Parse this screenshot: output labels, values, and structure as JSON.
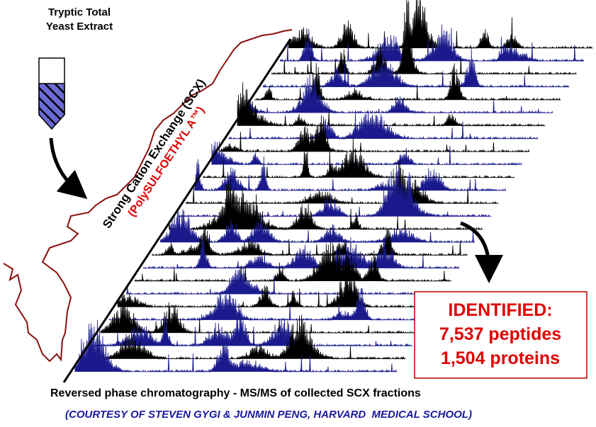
{
  "sample": {
    "line1": "Tryptic Total",
    "line2": "Yeast Extract"
  },
  "scx": {
    "label": "Strong Cation Exchange (SCX)",
    "column": "(PolySULFOETHYL A™)"
  },
  "result": {
    "heading": "IDENTIFIED:",
    "peptides": "7,537 peptides",
    "proteins": "1,504 proteins"
  },
  "caption": "Reversed phase chromatography - MS/MS of collected SCX fractions",
  "credit": "(COURTESY OF STEVEN GYGI & JUNMIN PENG, HARVARD  MEDICAL SCHOOL)"
}
